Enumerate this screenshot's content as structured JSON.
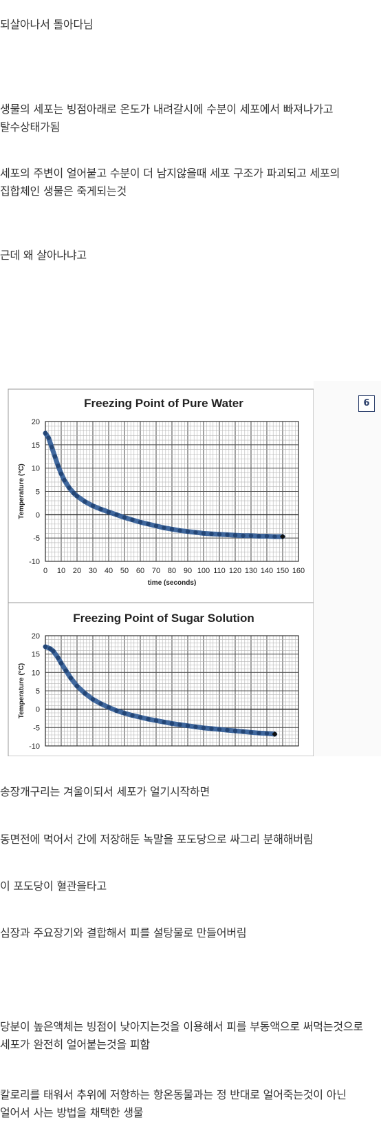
{
  "paragraphs": [
    "되살아나서 돌아다님",
    "생물의 세포는 빙점아래로 온도가 내려갈시에 수분이 세포에서 빠져나가고 탈수상태가됨",
    "세포의 주변이 얼어붙고 수분이 더 남지않을때 세포 구조가 파괴되고 세포의 집합체인 생물은 죽게되는것",
    "근데 왜 살아나냐고",
    "송장개구리는 겨울이되서 세포가 얼기시작하면",
    "동면전에 먹어서 간에 저장해둔 녹말을 포도당으로 싸그리 분해해버림",
    "이 포도당이 혈관을타고",
    "심장과 주요장기와 결합해서 피를 설탕물로 만들어버림",
    "당분이 높은액체는 빙점이 낮아지는것을 이용해서 피를 부동액으로 써먹는것으로 세포가 완전히 얼어붙는것을 피함",
    "칼로리를 태워서 추위에 저항하는 항온동물과는 정 반대로 얼어죽는것이 아닌 얼어서 사는 방법을 채택한 생물"
  ],
  "badge": "6",
  "chart_data": [
    {
      "type": "scatter",
      "title": "Freezing Point of Pure Water",
      "xlabel": "time (seconds)",
      "ylabel": "Temperature (°C)",
      "xlim": [
        0,
        160
      ],
      "ylim": [
        -10,
        20
      ],
      "xticks": [
        0,
        10,
        20,
        30,
        40,
        50,
        60,
        70,
        80,
        90,
        100,
        110,
        120,
        130,
        140,
        150,
        160
      ],
      "yticks": [
        20,
        15,
        10,
        5,
        0,
        -5,
        -10
      ],
      "grid": true,
      "marker_color": "#2e5a96",
      "points": [
        [
          0,
          17.5
        ],
        [
          2,
          16.5
        ],
        [
          4,
          14.5
        ],
        [
          6,
          12.5
        ],
        [
          8,
          10.5
        ],
        [
          10,
          8.8
        ],
        [
          12,
          7.4
        ],
        [
          15,
          5.8
        ],
        [
          18,
          4.6
        ],
        [
          20,
          4.0
        ],
        [
          25,
          2.8
        ],
        [
          30,
          1.9
        ],
        [
          35,
          1.2
        ],
        [
          40,
          0.6
        ],
        [
          45,
          0.0
        ],
        [
          50,
          -0.6
        ],
        [
          55,
          -1.1
        ],
        [
          60,
          -1.6
        ],
        [
          65,
          -2.0
        ],
        [
          70,
          -2.4
        ],
        [
          75,
          -2.8
        ],
        [
          80,
          -3.1
        ],
        [
          85,
          -3.4
        ],
        [
          90,
          -3.6
        ],
        [
          95,
          -3.8
        ],
        [
          100,
          -4.0
        ],
        [
          105,
          -4.1
        ],
        [
          110,
          -4.2
        ],
        [
          115,
          -4.3
        ],
        [
          120,
          -4.4
        ],
        [
          125,
          -4.5
        ],
        [
          130,
          -4.5
        ],
        [
          135,
          -4.6
        ],
        [
          140,
          -4.6
        ],
        [
          145,
          -4.7
        ],
        [
          150,
          -4.7
        ]
      ]
    },
    {
      "type": "scatter",
      "title": "Freezing Point of Sugar Solution",
      "xlabel": "",
      "ylabel": "Temperature (°C)",
      "xlim": [
        0,
        160
      ],
      "ylim": [
        -10,
        20
      ],
      "yticks": [
        20,
        15,
        10,
        5,
        0,
        -5,
        -10
      ],
      "grid": true,
      "marker_color": "#2e5a96",
      "points": [
        [
          0,
          17.0
        ],
        [
          3,
          16.5
        ],
        [
          5,
          15.8
        ],
        [
          8,
          14.0
        ],
        [
          10,
          12.5
        ],
        [
          13,
          10.5
        ],
        [
          16,
          8.5
        ],
        [
          20,
          6.3
        ],
        [
          25,
          4.3
        ],
        [
          30,
          2.7
        ],
        [
          35,
          1.5
        ],
        [
          40,
          0.5
        ],
        [
          45,
          -0.4
        ],
        [
          50,
          -1.1
        ],
        [
          55,
          -1.7
        ],
        [
          60,
          -2.2
        ],
        [
          65,
          -2.7
        ],
        [
          70,
          -3.1
        ],
        [
          75,
          -3.5
        ],
        [
          80,
          -3.9
        ],
        [
          85,
          -4.2
        ],
        [
          90,
          -4.5
        ],
        [
          95,
          -4.8
        ],
        [
          100,
          -5.1
        ],
        [
          105,
          -5.3
        ],
        [
          110,
          -5.5
        ],
        [
          115,
          -5.7
        ],
        [
          120,
          -5.9
        ],
        [
          125,
          -6.1
        ],
        [
          130,
          -6.3
        ],
        [
          135,
          -6.5
        ],
        [
          140,
          -6.6
        ],
        [
          145,
          -6.8
        ]
      ]
    }
  ]
}
